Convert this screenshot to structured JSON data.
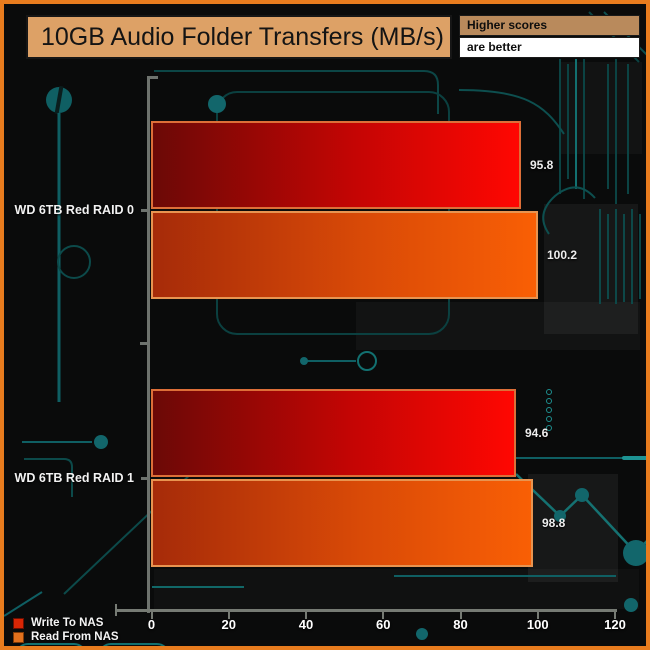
{
  "header": {
    "title": "10GB Audio Folder Transfers (MB/s)",
    "note_line1": "Higher scores",
    "note_line2": "are better"
  },
  "legend": [
    {
      "label": "Write To NAS",
      "color": "#d92605",
      "border": "#6b1002"
    },
    {
      "label": "Read From NAS",
      "color": "#e2711d",
      "border": "#803a06"
    }
  ],
  "colors": {
    "frame": "#e87c1e",
    "title_bg": "#dda166",
    "note_bg": "#b98a5c",
    "background": "#0a0b0b",
    "axis": "#70756e",
    "circuit": "#0f5f63"
  },
  "chart_data": {
    "type": "bar",
    "orientation": "horizontal",
    "title": "10GB Audio Folder Transfers (MB/s)",
    "categories": [
      "WD 6TB Red RAID 0",
      "WD 6TB Red RAID 1"
    ],
    "series": [
      {
        "name": "Write To NAS",
        "values": [
          95.8,
          94.6
        ],
        "color_start": "#6b0906",
        "color_mid": "#c40504",
        "color_end": "#ff0702",
        "border": "#dd6f38"
      },
      {
        "name": "Read From NAS",
        "values": [
          100.2,
          98.8
        ],
        "color_start": "#a62b09",
        "color_mid": "#d94a07",
        "color_end": "#f95f05",
        "border": "#e89450"
      }
    ],
    "xlim": [
      0,
      120
    ],
    "xticks": [
      0,
      20,
      40,
      60,
      80,
      100,
      120
    ],
    "xlabel": "",
    "ylabel": "",
    "grid": false,
    "legend_position": "bottom-left",
    "note": "Higher scores are better"
  }
}
